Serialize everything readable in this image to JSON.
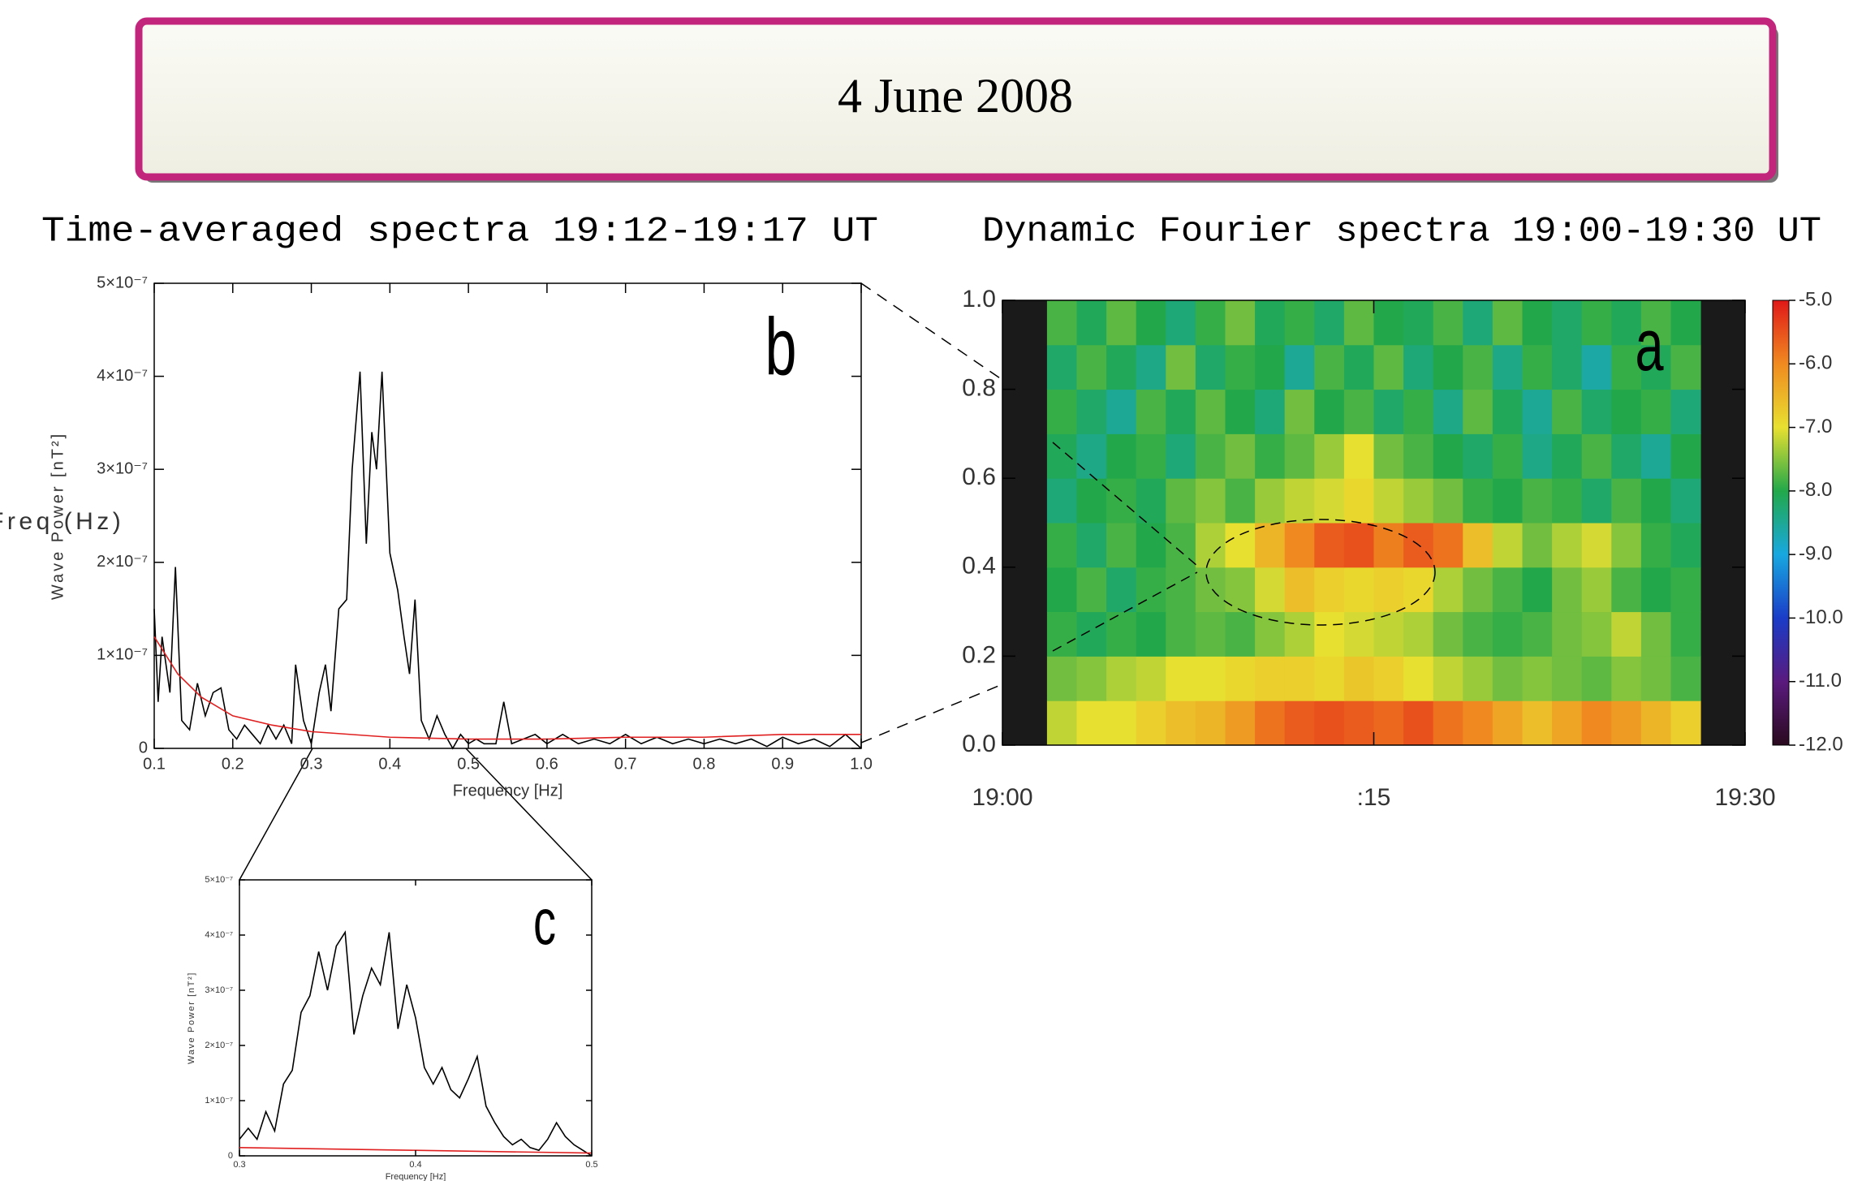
{
  "title": "4 June 2008",
  "chart_data": [
    {
      "type": "line",
      "title": "Time-averaged spectra 19:12-19:17 UT",
      "label": "b",
      "xlabel": "Frequency [Hz]",
      "ylabel": "Wave Power [nT²]",
      "xlim": [
        0.1,
        1.0
      ],
      "ylim": [
        0,
        5e-07
      ],
      "xticks": [
        0.1,
        0.2,
        0.3,
        0.4,
        0.5,
        0.6,
        0.7,
        0.8,
        0.9,
        {
          "value": 1,
          "label": "1.0"
        }
      ],
      "yticks": [
        0,
        {
          "value": 1e-07,
          "label": "1×10⁻⁷"
        },
        {
          "value": 2e-07,
          "label": "2×10⁻⁷"
        },
        {
          "value": 3e-07,
          "label": "3×10⁻⁷"
        },
        {
          "value": 4e-07,
          "label": "4×10⁻⁷"
        },
        {
          "value": 5e-07,
          "label": "5×10⁻⁷"
        }
      ],
      "series": [
        {
          "color": "#000000",
          "x": [
            0.1,
            0.105,
            0.11,
            0.115,
            0.12,
            0.127,
            0.135,
            0.145,
            0.155,
            0.165,
            0.175,
            0.185,
            0.195,
            0.205,
            0.215,
            0.225,
            0.235,
            0.245,
            0.255,
            0.265,
            0.275,
            0.28,
            0.29,
            0.3,
            0.31,
            0.318,
            0.325,
            0.335,
            0.345,
            0.352,
            0.362,
            0.37,
            0.377,
            0.383,
            0.39,
            0.4,
            0.41,
            0.418,
            0.425,
            0.432,
            0.44,
            0.45,
            0.46,
            0.47,
            0.48,
            0.49,
            0.5,
            0.51,
            0.52,
            0.535,
            0.545,
            0.555,
            0.57,
            0.585,
            0.6,
            0.62,
            0.64,
            0.66,
            0.68,
            0.7,
            0.72,
            0.74,
            0.76,
            0.78,
            0.8,
            0.82,
            0.84,
            0.86,
            0.88,
            0.9,
            0.92,
            0.94,
            0.96,
            0.98,
            1.0
          ],
          "values": [
            1.5e-07,
            5e-08,
            1.2e-07,
            9e-08,
            6e-08,
            1.95e-07,
            3e-08,
            2e-08,
            7e-08,
            3.5e-08,
            6e-08,
            6.5e-08,
            2e-08,
            1e-08,
            2.5e-08,
            1.5e-08,
            5e-09,
            2.5e-08,
            1e-08,
            2.5e-08,
            5e-09,
            9e-08,
            3e-08,
            5e-09,
            6e-08,
            9e-08,
            4e-08,
            1.5e-07,
            1.6e-07,
            3e-07,
            4.05e-07,
            2.2e-07,
            3.4e-07,
            3e-07,
            4.05e-07,
            2.1e-07,
            1.7e-07,
            1.2e-07,
            8e-08,
            1.6e-07,
            3e-08,
            1e-08,
            3.5e-08,
            1.5e-08,
            0,
            1.5e-08,
            5e-09,
            1e-08,
            5e-09,
            5e-09,
            5e-08,
            5e-09,
            1e-08,
            1.5e-08,
            5e-09,
            1.5e-08,
            5e-09,
            1e-08,
            5e-09,
            1.5e-08,
            5e-09,
            1.2e-08,
            5e-09,
            1e-08,
            5e-09,
            1e-08,
            5e-09,
            1e-08,
            2e-09,
            1.2e-08,
            5e-09,
            1e-08,
            2e-09,
            1.5e-08,
            0
          ]
        },
        {
          "color": "#e02020",
          "x": [
            0.1,
            0.13,
            0.16,
            0.2,
            0.25,
            0.3,
            0.4,
            0.5,
            0.6,
            0.7,
            0.8,
            0.9,
            1.0
          ],
          "values": [
            1.2e-07,
            8e-08,
            5.5e-08,
            3.5e-08,
            2.5e-08,
            1.8e-08,
            1.2e-08,
            1e-08,
            1e-08,
            1.2e-08,
            1.2e-08,
            1.5e-08,
            1.5e-08
          ]
        }
      ]
    },
    {
      "type": "line",
      "label": "c",
      "xlabel": "Frequency [Hz]",
      "ylabel": "Wave Power [nT²]",
      "xlim": [
        0.3,
        0.5
      ],
      "ylim": [
        0,
        5e-07
      ],
      "xticks": [
        0.3,
        0.4,
        0.5
      ],
      "yticks": [
        0,
        {
          "value": 1e-07,
          "label": "1×10⁻⁷"
        },
        {
          "value": 2e-07,
          "label": "2×10⁻⁷"
        },
        {
          "value": 3e-07,
          "label": "3×10⁻⁷"
        },
        {
          "value": 4e-07,
          "label": "4×10⁻⁷"
        },
        {
          "value": 5e-07,
          "label": "5×10⁻⁷"
        }
      ],
      "series": [
        {
          "color": "#000000",
          "x": [
            0.3,
            0.305,
            0.31,
            0.315,
            0.32,
            0.325,
            0.33,
            0.335,
            0.34,
            0.345,
            0.35,
            0.355,
            0.36,
            0.365,
            0.37,
            0.375,
            0.38,
            0.385,
            0.39,
            0.395,
            0.4,
            0.405,
            0.41,
            0.415,
            0.42,
            0.425,
            0.43,
            0.435,
            0.44,
            0.445,
            0.45,
            0.455,
            0.46,
            0.465,
            0.47,
            0.475,
            0.48,
            0.485,
            0.49,
            0.495,
            0.5
          ],
          "values": [
            3e-08,
            5e-08,
            3e-08,
            8e-08,
            4.5e-08,
            1.3e-07,
            1.55e-07,
            2.6e-07,
            2.9e-07,
            3.7e-07,
            3e-07,
            3.8e-07,
            4.05e-07,
            2.2e-07,
            2.9e-07,
            3.4e-07,
            3.1e-07,
            4.05e-07,
            2.3e-07,
            3.1e-07,
            2.5e-07,
            1.6e-07,
            1.3e-07,
            1.6e-07,
            1.2e-07,
            1.05e-07,
            1.4e-07,
            1.8e-07,
            9e-08,
            6e-08,
            3.5e-08,
            2e-08,
            3e-08,
            1.5e-08,
            1e-08,
            3e-08,
            6e-08,
            3.5e-08,
            2e-08,
            1e-08,
            0
          ]
        },
        {
          "color": "#e02020",
          "x": [
            0.3,
            0.4,
            0.5
          ],
          "values": [
            1.5e-08,
            1e-08,
            5e-09
          ]
        }
      ]
    },
    {
      "type": "heatmap",
      "title": "Dynamic Fourier spectra 19:00-19:30 UT",
      "label": "a",
      "ylabel": "LYR Bx Freq (Hz)",
      "xlim": [
        0,
        30
      ],
      "ylim": [
        0,
        1
      ],
      "xticks": [
        {
          "value": 0,
          "label": "19:00"
        },
        {
          "value": 15,
          "label": ":15"
        },
        {
          "value": 30,
          "label": "19:30"
        }
      ],
      "yticks": [
        {
          "value": 0,
          "label": "0.0"
        },
        0.2,
        0.4,
        0.6,
        0.8,
        {
          "value": 1,
          "label": "1.0"
        }
      ],
      "zlim": [
        -12,
        -5
      ],
      "zticks": [
        {
          "value": -5,
          "label": "-5.0"
        },
        {
          "value": -6,
          "label": "-6.0"
        },
        {
          "value": -7,
          "label": "-7.0"
        },
        {
          "value": -8,
          "label": "-8.0"
        },
        {
          "value": -9,
          "label": "-9.0"
        },
        {
          "value": -10,
          "label": "-10.0"
        },
        {
          "value": -11,
          "label": "-11.0"
        },
        {
          "value": -12,
          "label": "-12.0"
        }
      ],
      "colorscale": [
        "#2a0a1e",
        "#5a1a7e",
        "#1a3cc8",
        "#18a8e0",
        "#22a84a",
        "#e8e030",
        "#f08a20",
        "#e01818"
      ],
      "x": [
        2.4,
        3.6,
        4.8,
        6.0,
        7.2,
        8.4,
        9.6,
        10.8,
        12.0,
        13.2,
        14.4,
        15.6,
        16.8,
        18.0,
        19.2,
        20.4,
        21.6,
        22.8,
        24.0,
        25.2,
        26.4,
        27.6
      ],
      "y": [
        0.05,
        0.15,
        0.25,
        0.35,
        0.45,
        0.55,
        0.65,
        0.75,
        0.85,
        0.95
      ],
      "z": [
        [
          -7.2,
          -7.0,
          -7.0,
          -6.8,
          -6.6,
          -6.5,
          -6.2,
          -5.8,
          -5.6,
          -5.5,
          -5.6,
          -5.7,
          -5.5,
          -5.8,
          -6.0,
          -6.3,
          -6.6,
          -6.3,
          -6.0,
          -6.2,
          -6.5,
          -6.8
        ],
        [
          -7.6,
          -7.5,
          -7.3,
          -7.2,
          -7.0,
          -7.0,
          -6.9,
          -6.8,
          -6.8,
          -6.9,
          -6.7,
          -6.8,
          -7.0,
          -7.2,
          -7.4,
          -7.6,
          -7.5,
          -7.6,
          -7.7,
          -7.5,
          -7.6,
          -7.8
        ],
        [
          -7.9,
          -8.1,
          -7.9,
          -8.0,
          -7.8,
          -7.7,
          -7.8,
          -7.5,
          -7.3,
          -7.0,
          -7.1,
          -7.2,
          -7.3,
          -7.6,
          -7.8,
          -7.9,
          -7.8,
          -7.6,
          -7.5,
          -7.2,
          -7.6,
          -7.9
        ],
        [
          -8.0,
          -7.8,
          -8.2,
          -7.9,
          -7.8,
          -7.6,
          -7.5,
          -7.1,
          -6.6,
          -6.8,
          -6.9,
          -6.8,
          -6.9,
          -7.3,
          -7.6,
          -7.8,
          -8.0,
          -7.6,
          -7.4,
          -7.8,
          -8.0,
          -7.9
        ],
        [
          -7.9,
          -8.2,
          -7.8,
          -8.0,
          -7.8,
          -7.3,
          -7.0,
          -6.5,
          -6.0,
          -5.6,
          -5.5,
          -5.9,
          -5.6,
          -5.8,
          -6.6,
          -7.2,
          -7.6,
          -7.3,
          -7.1,
          -7.5,
          -7.9,
          -8.1
        ],
        [
          -8.3,
          -8.0,
          -7.9,
          -8.1,
          -7.7,
          -7.5,
          -7.8,
          -7.4,
          -7.2,
          -7.1,
          -6.9,
          -7.2,
          -7.4,
          -7.6,
          -7.9,
          -8.0,
          -7.8,
          -7.9,
          -8.2,
          -7.8,
          -8.0,
          -8.3
        ],
        [
          -8.1,
          -8.4,
          -8.0,
          -7.9,
          -8.3,
          -7.8,
          -7.6,
          -7.9,
          -7.7,
          -7.4,
          -7.0,
          -7.6,
          -7.8,
          -8.0,
          -8.2,
          -7.9,
          -8.4,
          -8.1,
          -7.8,
          -8.2,
          -8.5,
          -8.0
        ],
        [
          -7.9,
          -8.2,
          -8.5,
          -7.8,
          -8.1,
          -7.7,
          -8.0,
          -8.3,
          -7.6,
          -8.0,
          -7.8,
          -8.2,
          -7.9,
          -8.4,
          -7.7,
          -8.1,
          -8.5,
          -7.8,
          -8.2,
          -8.0,
          -7.9,
          -8.3
        ],
        [
          -8.2,
          -7.8,
          -8.1,
          -8.4,
          -7.6,
          -8.2,
          -7.9,
          -8.0,
          -8.5,
          -7.8,
          -8.1,
          -7.7,
          -8.3,
          -8.0,
          -7.8,
          -8.4,
          -7.9,
          -8.2,
          -8.6,
          -7.9,
          -8.1,
          -7.8
        ],
        [
          -7.8,
          -8.1,
          -7.7,
          -8.0,
          -8.3,
          -7.9,
          -7.6,
          -8.1,
          -7.9,
          -8.2,
          -7.7,
          -8.0,
          -8.1,
          -7.8,
          -8.3,
          -7.7,
          -8.0,
          -8.2,
          -7.9,
          -8.1,
          -7.8,
          -8.0
        ]
      ]
    }
  ]
}
